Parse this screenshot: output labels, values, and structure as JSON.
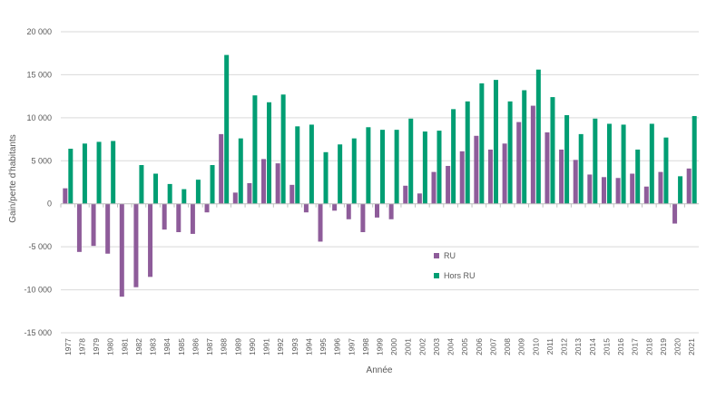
{
  "chart_data": {
    "type": "bar",
    "title": "",
    "xlabel": "Année",
    "ylabel": "Gain/perte d'habitants",
    "ylim": [
      -15000,
      20000
    ],
    "yticks": [
      20000,
      15000,
      10000,
      5000,
      0,
      -5000,
      -10000,
      -15000
    ],
    "ytick_labels": [
      "20 000",
      "15 000",
      "10 000",
      "5 000",
      "0",
      "-5 000",
      "-10 000",
      "-15 000"
    ],
    "grid": "horizontal",
    "legend_position": "center",
    "categories": [
      "1977",
      "1978",
      "1979",
      "1980",
      "1981",
      "1982",
      "1983",
      "1984",
      "1985",
      "1986",
      "1987",
      "1988",
      "1989",
      "1990",
      "1991",
      "1992",
      "1993",
      "1994",
      "1995",
      "1996",
      "1997",
      "1998",
      "1999",
      "2000",
      "2001",
      "2002",
      "2003",
      "2004",
      "2005",
      "2006",
      "2007",
      "2008",
      "2009",
      "2010",
      "2011",
      "2012",
      "2013",
      "2014",
      "2015",
      "2016",
      "2017",
      "2018",
      "2019",
      "2020",
      "2021"
    ],
    "series": [
      {
        "name": "RU",
        "color": "#8e5c9a",
        "values": [
          1800,
          -5600,
          -4900,
          -5800,
          -10800,
          -9700,
          -8500,
          -3000,
          -3300,
          -3500,
          -1000,
          8100,
          1300,
          2400,
          5200,
          4700,
          2200,
          -1000,
          -4400,
          -800,
          -1800,
          -3300,
          -1600,
          -1800,
          2100,
          1200,
          3700,
          4400,
          6100,
          7900,
          6300,
          7000,
          9500,
          11400,
          8300,
          6300,
          5100,
          3400,
          3100,
          3000,
          3500,
          2000,
          3700,
          -2300,
          4100
        ]
      },
      {
        "name": "Hors RU",
        "color": "#009e73",
        "values": [
          6400,
          7000,
          7200,
          7300,
          0,
          4500,
          3500,
          2300,
          1700,
          2800,
          4500,
          17300,
          7600,
          12600,
          11800,
          12700,
          9000,
          9200,
          6000,
          6900,
          7600,
          8900,
          8600,
          8600,
          9900,
          8400,
          8500,
          11000,
          11900,
          14000,
          14400,
          11900,
          13200,
          15600,
          12400,
          10300,
          8100,
          9900,
          9300,
          9200,
          6300,
          9300,
          7700,
          3200,
          10200
        ]
      }
    ]
  }
}
